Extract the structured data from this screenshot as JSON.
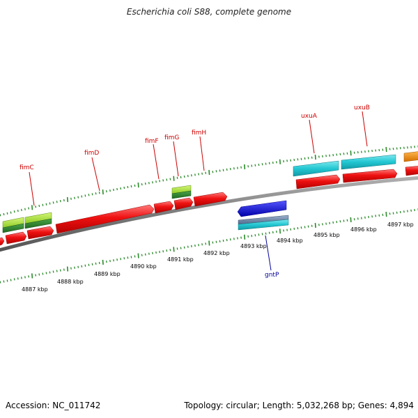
{
  "title": "Escherichia coli S88, complete genome",
  "footer": {
    "accession": "Accession: NC_011742",
    "stats": "Topology: circular; Length: 5,032,268 bp; Genes: 4,894"
  },
  "scale_labels": [
    "4887 kbp",
    "4888 kbp",
    "4889 kbp",
    "4890 kbp",
    "4891 kbp",
    "4892 kbp",
    "4893 kbp",
    "4894 kbp",
    "4895 kbp",
    "4896 kbp",
    "4897 kbp"
  ],
  "gene_labels": {
    "fimC": "fimC",
    "fimD": "fimD",
    "fimF": "fimF",
    "fimG": "fimG",
    "fimH": "fimH",
    "uxuA": "uxuA",
    "uxuB": "uxuB",
    "gntP": "gntP"
  },
  "colors": {
    "cds": "#ee1111",
    "cds_light": "#ff6a6a",
    "cyan": "#22c7d2",
    "lime": "#99dd33",
    "green_dark": "#2f8a2f",
    "blue": "#1111dd",
    "slate": "#6b86a8",
    "orange": "#ee8a10",
    "tick": "#2a8a2a",
    "backbone": "#7a7a7a",
    "label_red": "#cc0000",
    "label_blue": "#000099"
  }
}
